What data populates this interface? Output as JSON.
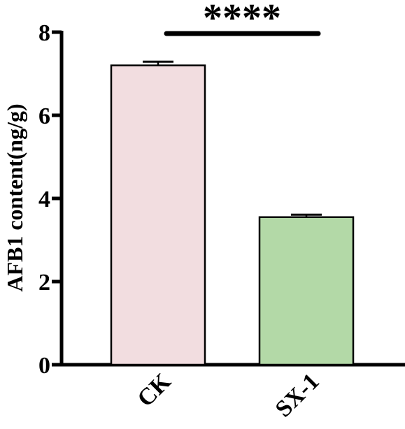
{
  "chart_data": {
    "type": "bar",
    "title": "",
    "xlabel": "",
    "ylabel": "AFB1 content(ng/g)",
    "ylim": [
      0,
      8
    ],
    "yticks": [
      "0",
      "2",
      "4",
      "6",
      "8"
    ],
    "categories": [
      "CK",
      "SX-1"
    ],
    "values": [
      7.2,
      3.55
    ],
    "errors": [
      0.09,
      0.06
    ],
    "colors": [
      "#f2dde0",
      "#b3d9a7"
    ],
    "significance": {
      "label": "****",
      "between": [
        "CK",
        "SX-1"
      ]
    },
    "grid": false
  }
}
